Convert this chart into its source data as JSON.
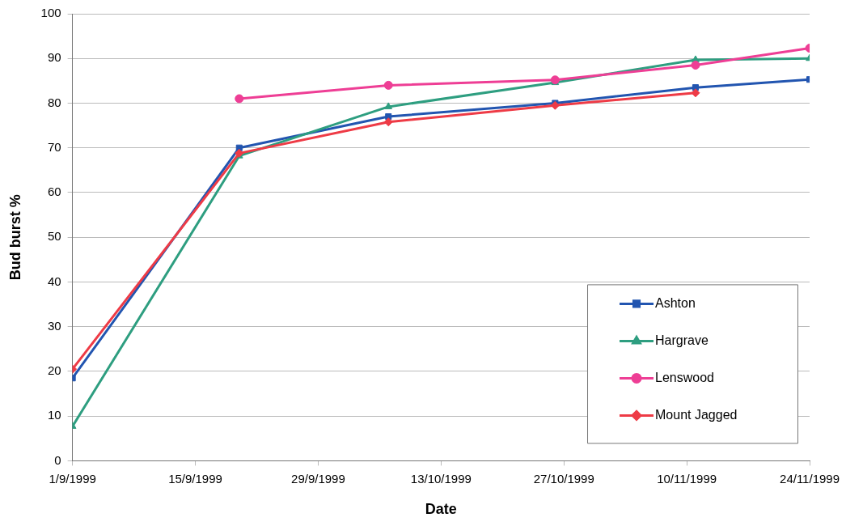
{
  "chart_data": {
    "type": "line",
    "xlabel": "Date",
    "ylabel": "Bud burst %",
    "series": [
      {
        "name": "Ashton",
        "color": "#2255b0",
        "marker": "square",
        "x": [
          "1999-09-01",
          "1999-09-20",
          "1999-10-07",
          "1999-10-26",
          "1999-11-11",
          "1999-11-24"
        ],
        "values": [
          18.5,
          70,
          77,
          80,
          83.5,
          85.3
        ]
      },
      {
        "name": "Hargrave",
        "color": "#2e9e80",
        "marker": "triangle",
        "x": [
          "1999-09-01",
          "1999-09-20",
          "1999-10-07",
          "1999-10-26",
          "1999-11-11",
          "1999-11-24"
        ],
        "values": [
          7.7,
          68.2,
          79.2,
          84.6,
          89.7,
          90
        ]
      },
      {
        "name": "Lenswood",
        "color": "#ee3e95",
        "marker": "circle",
        "x": [
          "1999-09-20",
          "1999-10-07",
          "1999-10-26",
          "1999-11-11",
          "1999-11-24"
        ],
        "values": [
          81,
          84,
          85.2,
          88.5,
          92.3
        ]
      },
      {
        "name": "Mount Jagged",
        "color": "#ee3b46",
        "marker": "diamond",
        "x": [
          "1999-09-01",
          "1999-09-20",
          "1999-10-07",
          "1999-10-26",
          "1999-11-11"
        ],
        "values": [
          20.5,
          68.8,
          75.8,
          79.5,
          82.3
        ]
      }
    ],
    "xlim": [
      "1999-09-01",
      "1999-11-24"
    ],
    "xticks": [
      {
        "value": "1999-09-01",
        "label": "1/9/1999"
      },
      {
        "value": "1999-09-15",
        "label": "15/9/1999"
      },
      {
        "value": "1999-09-29",
        "label": "29/9/1999"
      },
      {
        "value": "1999-10-13",
        "label": "13/10/1999"
      },
      {
        "value": "1999-10-27",
        "label": "27/10/1999"
      },
      {
        "value": "1999-11-10",
        "label": "10/11/1999"
      },
      {
        "value": "1999-11-24",
        "label": "24/11/1999"
      }
    ],
    "ylim": [
      0,
      100
    ],
    "yticks": [
      0,
      10,
      20,
      30,
      40,
      50,
      60,
      70,
      80,
      90,
      100
    ],
    "grid": "y",
    "legend": "bottom right",
    "line_style": "solid"
  }
}
